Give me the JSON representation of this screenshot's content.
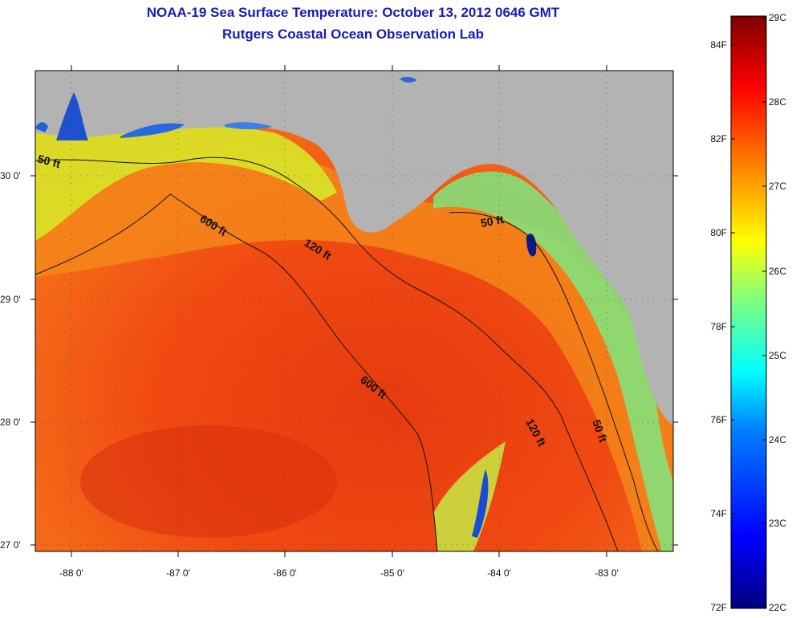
{
  "title": {
    "line1": "NOAA-19 Sea Surface Temperature:  October 13, 2012 0646 GMT",
    "line2": "Rutgers Coastal Ocean Observation Lab"
  },
  "map": {
    "land_color": "#b3b3b3",
    "latitude_labels": [
      "30 0'",
      "29 0'",
      "28 0'",
      "27 0'"
    ],
    "longitude_labels": [
      "-88 0'",
      "-87 0'",
      "-86 0'",
      "-85 0'",
      "-84 0'",
      "-83 0'"
    ],
    "contour_labels": [
      "50 ft",
      "600 ft",
      "120 ft",
      "50 ft",
      "600 ft",
      "120 ft",
      "50 ft"
    ]
  },
  "colorbar": {
    "celsius": [
      "29C",
      "28C",
      "27C",
      "26C",
      "25C",
      "24C",
      "23C",
      "22C"
    ],
    "fahrenheit": [
      "84F",
      "82F",
      "80F",
      "78F",
      "76F",
      "74F",
      "72F"
    ],
    "colors": [
      "#00007f",
      "#0000ff",
      "#007fff",
      "#00ffff",
      "#7fff7f",
      "#ffff00",
      "#ff7f00",
      "#ff0000",
      "#7f0000"
    ]
  }
}
